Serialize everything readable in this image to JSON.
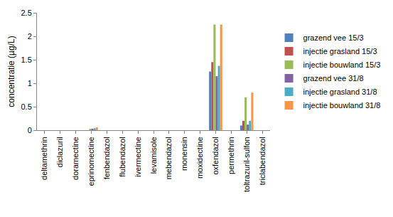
{
  "chart_data": {
    "type": "bar",
    "y_label": "concentratie (µg/L)",
    "categories": [
      "deltamethrin",
      "diclazuril",
      "doramectine",
      "eprinomectine",
      "fenbendazol",
      "flubendazol",
      "ivermectine",
      "levamisole",
      "mebendazol",
      "monensin",
      "moxidectine",
      "oxfendazol",
      "permethrin",
      "toltrazuril-sulfon",
      "triclabendazol"
    ],
    "series": [
      {
        "name": "grazend vee 15/3",
        "color": "#4F81BD",
        "values": [
          0,
          0,
          0,
          0,
          0,
          0,
          0,
          0,
          0,
          0,
          0,
          1.25,
          0,
          0.1,
          0
        ]
      },
      {
        "name": "injectie grasland 15/3",
        "color": "#C0504D",
        "values": [
          0,
          0,
          0,
          0,
          0,
          0,
          0,
          0,
          0,
          0,
          0,
          1.45,
          0,
          0.2,
          0
        ]
      },
      {
        "name": "injectie bouwland 15/3",
        "color": "#9BBB59",
        "values": [
          0,
          0,
          0,
          0.03,
          0,
          0,
          0,
          0,
          0,
          0,
          0,
          2.25,
          0,
          0.7,
          0
        ]
      },
      {
        "name": "grazend vee 31/8",
        "color": "#8064A2",
        "values": [
          0,
          0,
          0,
          0.03,
          0,
          0,
          0,
          0,
          0,
          0,
          0,
          1.15,
          0,
          0.12,
          0
        ]
      },
      {
        "name": "injectie grasland 31/8",
        "color": "#4BACC6",
        "values": [
          0,
          0,
          0,
          0.04,
          0,
          0,
          0,
          0,
          0,
          0,
          0,
          1.37,
          0,
          0.2,
          0
        ]
      },
      {
        "name": "injectie bouwland 31/8",
        "color": "#F79646",
        "values": [
          0,
          0,
          0,
          0.06,
          0,
          0,
          0,
          0,
          0,
          0,
          0,
          2.25,
          0,
          0.8,
          0
        ]
      }
    ],
    "ylim": [
      0,
      2.5
    ],
    "yticks": [
      0,
      0.5,
      1,
      1.5,
      2,
      2.5
    ],
    "grid": false,
    "legend": "right"
  }
}
